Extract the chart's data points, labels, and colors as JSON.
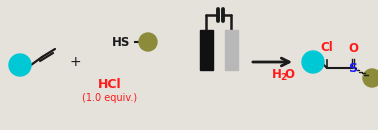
{
  "bg_color": "#e5e1db",
  "cyan_color": "#00c8d4",
  "olive_color": "#8b8b3a",
  "black_color": "#1a1a1a",
  "red_color": "#ff1a1a",
  "blue_color": "#1a1aff",
  "arrow_color": "#1a1a1a",
  "figsize": [
    3.78,
    1.3
  ],
  "dpi": 100,
  "hcl_text": "HCl",
  "equiv_text": "(1.0 equiv.)",
  "h2o_text": "H2O",
  "plus_text": "+"
}
